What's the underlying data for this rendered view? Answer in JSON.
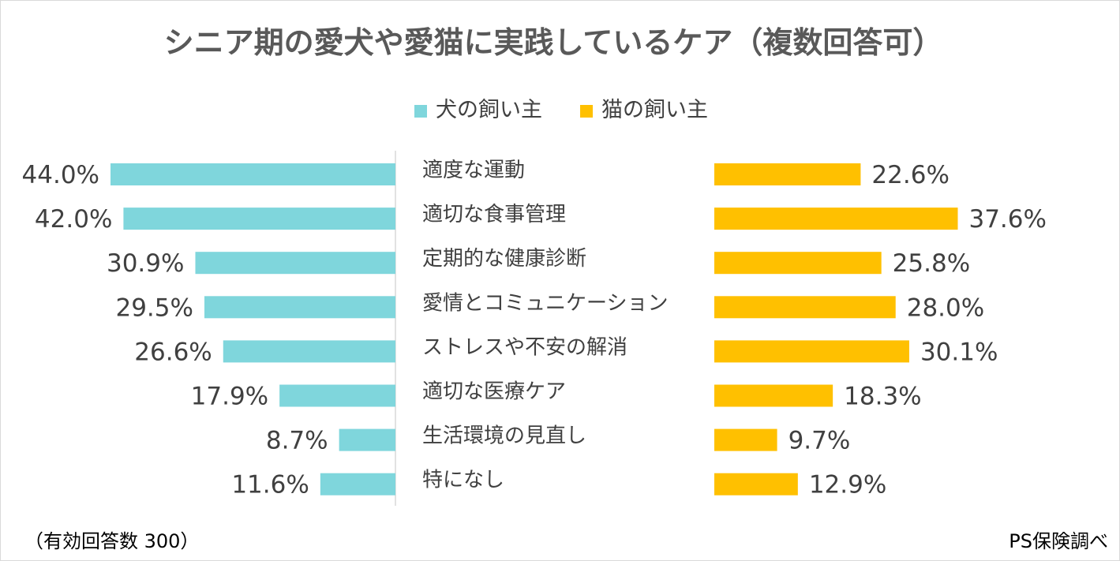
{
  "chart_data": {
    "type": "bar",
    "title": "シニア期の愛犬や愛猫に実践しているケア（複数回答可）",
    "categories": [
      "適度な運動",
      "適切な食事管理",
      "定期的な健康診断",
      "愛情とコミュニケーション",
      "ストレスや不安の解消",
      "適切な医療ケア",
      "生活環境の見直し",
      "特になし"
    ],
    "series": [
      {
        "name": "犬の飼い主",
        "color": "#7fd6dc",
        "values": [
          44.0,
          42.0,
          30.9,
          29.5,
          26.6,
          17.9,
          8.7,
          11.6
        ],
        "labels": [
          "44.0%",
          "42.0%",
          "30.9%",
          "29.5%",
          "26.6%",
          "17.9%",
          "8.7%",
          "11.6%"
        ]
      },
      {
        "name": "猫の飼い主",
        "color": "#ffc000",
        "values": [
          22.6,
          37.6,
          25.8,
          28.0,
          30.1,
          18.3,
          9.7,
          12.9
        ],
        "labels": [
          "22.6%",
          "37.6%",
          "25.8%",
          "28.0%",
          "30.1%",
          "18.3%",
          "9.7%",
          "12.9%"
        ]
      }
    ],
    "unit": "%",
    "xlim": [
      0,
      44
    ],
    "legend_position": "top-center"
  },
  "footnote": "（有効回答数 300）",
  "source": "PS保険調べ"
}
